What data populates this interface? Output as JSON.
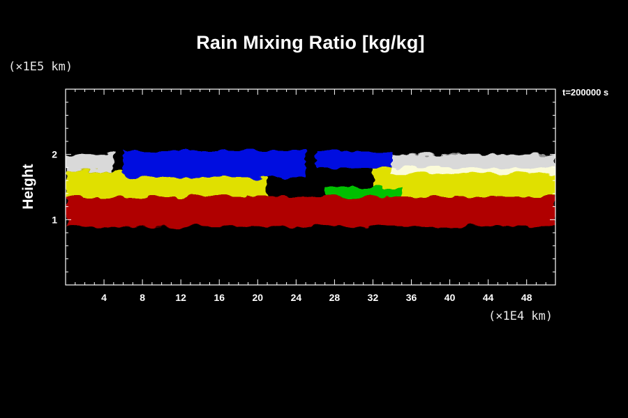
{
  "chart_data": {
    "type": "heatmap",
    "title": "Rain Mixing Ratio [kg/kg]",
    "ylabel": "Height",
    "y_unit": "(×1E5 km)",
    "x_unit": "(×1E4 km)",
    "time_label": "t=200000 s",
    "xlim": [
      0,
      51
    ],
    "ylim": [
      0,
      3
    ],
    "x_ticks": [
      4,
      8,
      12,
      16,
      20,
      24,
      28,
      32,
      36,
      40,
      44,
      48
    ],
    "y_ticks": [
      1,
      2
    ],
    "colors": {
      "background": "#000000",
      "axis": "#ffffff",
      "low": "#b00000",
      "mid_low": "#00c000",
      "mid": "#e0e000",
      "mid_high": "#ffffff",
      "high": "#0010e0"
    },
    "bands": [
      {
        "level": "low",
        "color": "#b00000",
        "y_range": [
          0.9,
          1.35
        ],
        "x_range": [
          0,
          51
        ]
      },
      {
        "level": "mid",
        "color": "#e0e000",
        "y_range": [
          1.35,
          1.75
        ],
        "x_range": [
          0,
          21
        ]
      },
      {
        "level": "mid",
        "color": "#e0e000",
        "y_range": [
          1.35,
          1.8
        ],
        "x_range": [
          32,
          51
        ]
      },
      {
        "level": "mid_low",
        "color": "#00c000",
        "y_range": [
          1.35,
          1.5
        ],
        "x_range": [
          27,
          35
        ]
      },
      {
        "level": "mid_high",
        "color": "#ffffff",
        "y_range": [
          1.75,
          2.0
        ],
        "x_range": [
          0,
          5
        ]
      },
      {
        "level": "mid_high",
        "color": "#ffffff",
        "y_range": [
          1.7,
          2.0
        ],
        "x_range": [
          34,
          51
        ]
      },
      {
        "level": "high",
        "color": "#0010e0",
        "y_range": [
          1.65,
          2.05
        ],
        "x_range": [
          6,
          25
        ]
      },
      {
        "level": "high",
        "color": "#0010e0",
        "y_range": [
          1.8,
          2.05
        ],
        "x_range": [
          26,
          34
        ]
      }
    ]
  }
}
